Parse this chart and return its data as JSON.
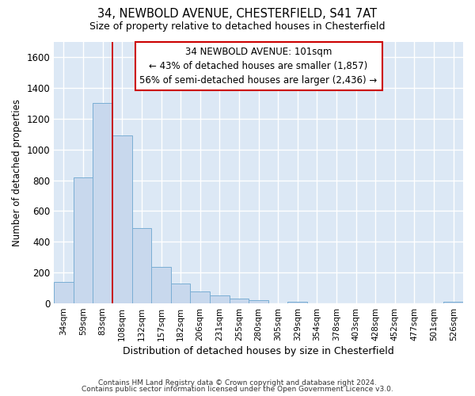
{
  "title_line1": "34, NEWBOLD AVENUE, CHESTERFIELD, S41 7AT",
  "title_line2": "Size of property relative to detached houses in Chesterfield",
  "xlabel": "Distribution of detached houses by size in Chesterfield",
  "ylabel": "Number of detached properties",
  "bar_color": "#c8d8ed",
  "bar_edge_color": "#7aaed4",
  "background_color": "#dce8f5",
  "grid_color": "#ffffff",
  "categories": [
    "34sqm",
    "59sqm",
    "83sqm",
    "108sqm",
    "132sqm",
    "157sqm",
    "182sqm",
    "206sqm",
    "231sqm",
    "255sqm",
    "280sqm",
    "305sqm",
    "329sqm",
    "354sqm",
    "378sqm",
    "403sqm",
    "428sqm",
    "452sqm",
    "477sqm",
    "501sqm",
    "526sqm"
  ],
  "values": [
    140,
    820,
    1300,
    1090,
    490,
    235,
    130,
    75,
    50,
    30,
    20,
    0,
    10,
    0,
    0,
    0,
    0,
    0,
    0,
    0,
    10
  ],
  "ylim": [
    0,
    1700
  ],
  "yticks": [
    0,
    200,
    400,
    600,
    800,
    1000,
    1200,
    1400,
    1600
  ],
  "property_line_x": 3.0,
  "property_line_color": "#cc0000",
  "annotation_text_line1": "34 NEWBOLD AVENUE: 101sqm",
  "annotation_text_line2": "← 43% of detached houses are smaller (1,857)",
  "annotation_text_line3": "56% of semi-detached houses are larger (2,436) →",
  "footnote1": "Contains HM Land Registry data © Crown copyright and database right 2024.",
  "footnote2": "Contains public sector information licensed under the Open Government Licence v3.0."
}
